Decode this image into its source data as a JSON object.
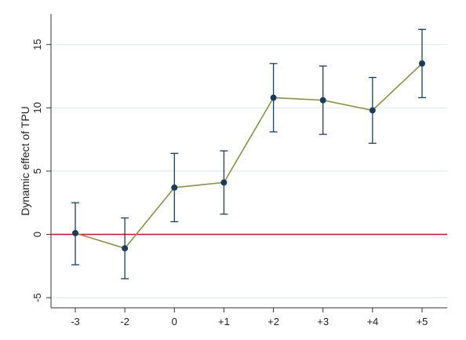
{
  "chart_data": {
    "type": "line",
    "ylabel": "Dynamic effect of TPU",
    "categories": [
      "-3",
      "-2",
      "0",
      "+1",
      "+2",
      "+3",
      "+4",
      "+5"
    ],
    "series": [
      {
        "values": [
          0.1,
          -1.1,
          3.7,
          4.1,
          10.8,
          10.6,
          9.8,
          13.5
        ],
        "ci_low": [
          -2.4,
          -3.5,
          1.0,
          1.6,
          8.1,
          7.9,
          7.2,
          10.8
        ],
        "ci_high": [
          2.5,
          1.3,
          6.4,
          6.6,
          13.5,
          13.3,
          12.4,
          16.2
        ]
      }
    ],
    "ylim": [
      -5.8,
      17.4
    ],
    "yticks": [
      -5,
      0,
      5,
      10,
      15
    ],
    "reference_line": 0,
    "grid": true,
    "colors": {
      "line": "#8b8f4a",
      "marker": "#1c3d5a",
      "ci": "#1c3d5a",
      "zero_line": "#c0142f",
      "grid": "#e4ecec"
    }
  }
}
